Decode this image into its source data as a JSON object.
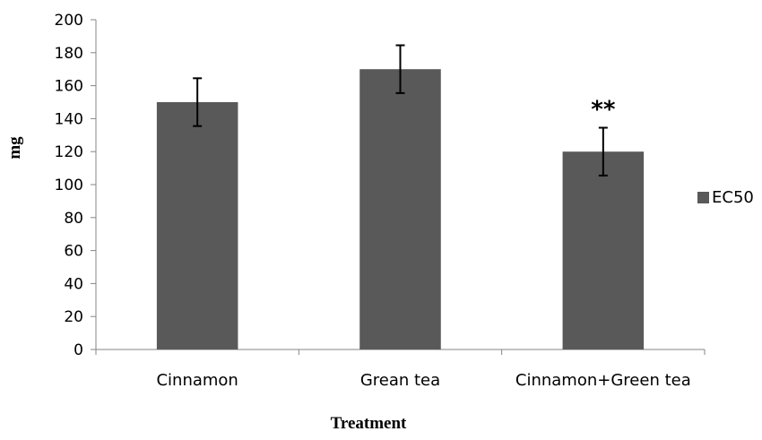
{
  "chart_data": {
    "type": "bar",
    "title": "",
    "xlabel": "Treatment",
    "ylabel": "mg",
    "ylim": [
      0,
      200
    ],
    "yticks": [
      "0",
      "20",
      "40",
      "60",
      "80",
      "100",
      "120",
      "140",
      "160",
      "180",
      "200"
    ],
    "categories": [
      "Cinnamon",
      "Grean tea",
      "Cinnamon+Green tea"
    ],
    "series": [
      {
        "name": "EC50",
        "values": [
          150,
          170,
          120
        ],
        "error": [
          14.5,
          14.5,
          14.5
        ],
        "color": "#595959"
      }
    ],
    "annotations": [
      {
        "category": "Cinnamon+Green tea",
        "text": "**"
      }
    ],
    "legend_position": "right",
    "grid": false
  }
}
